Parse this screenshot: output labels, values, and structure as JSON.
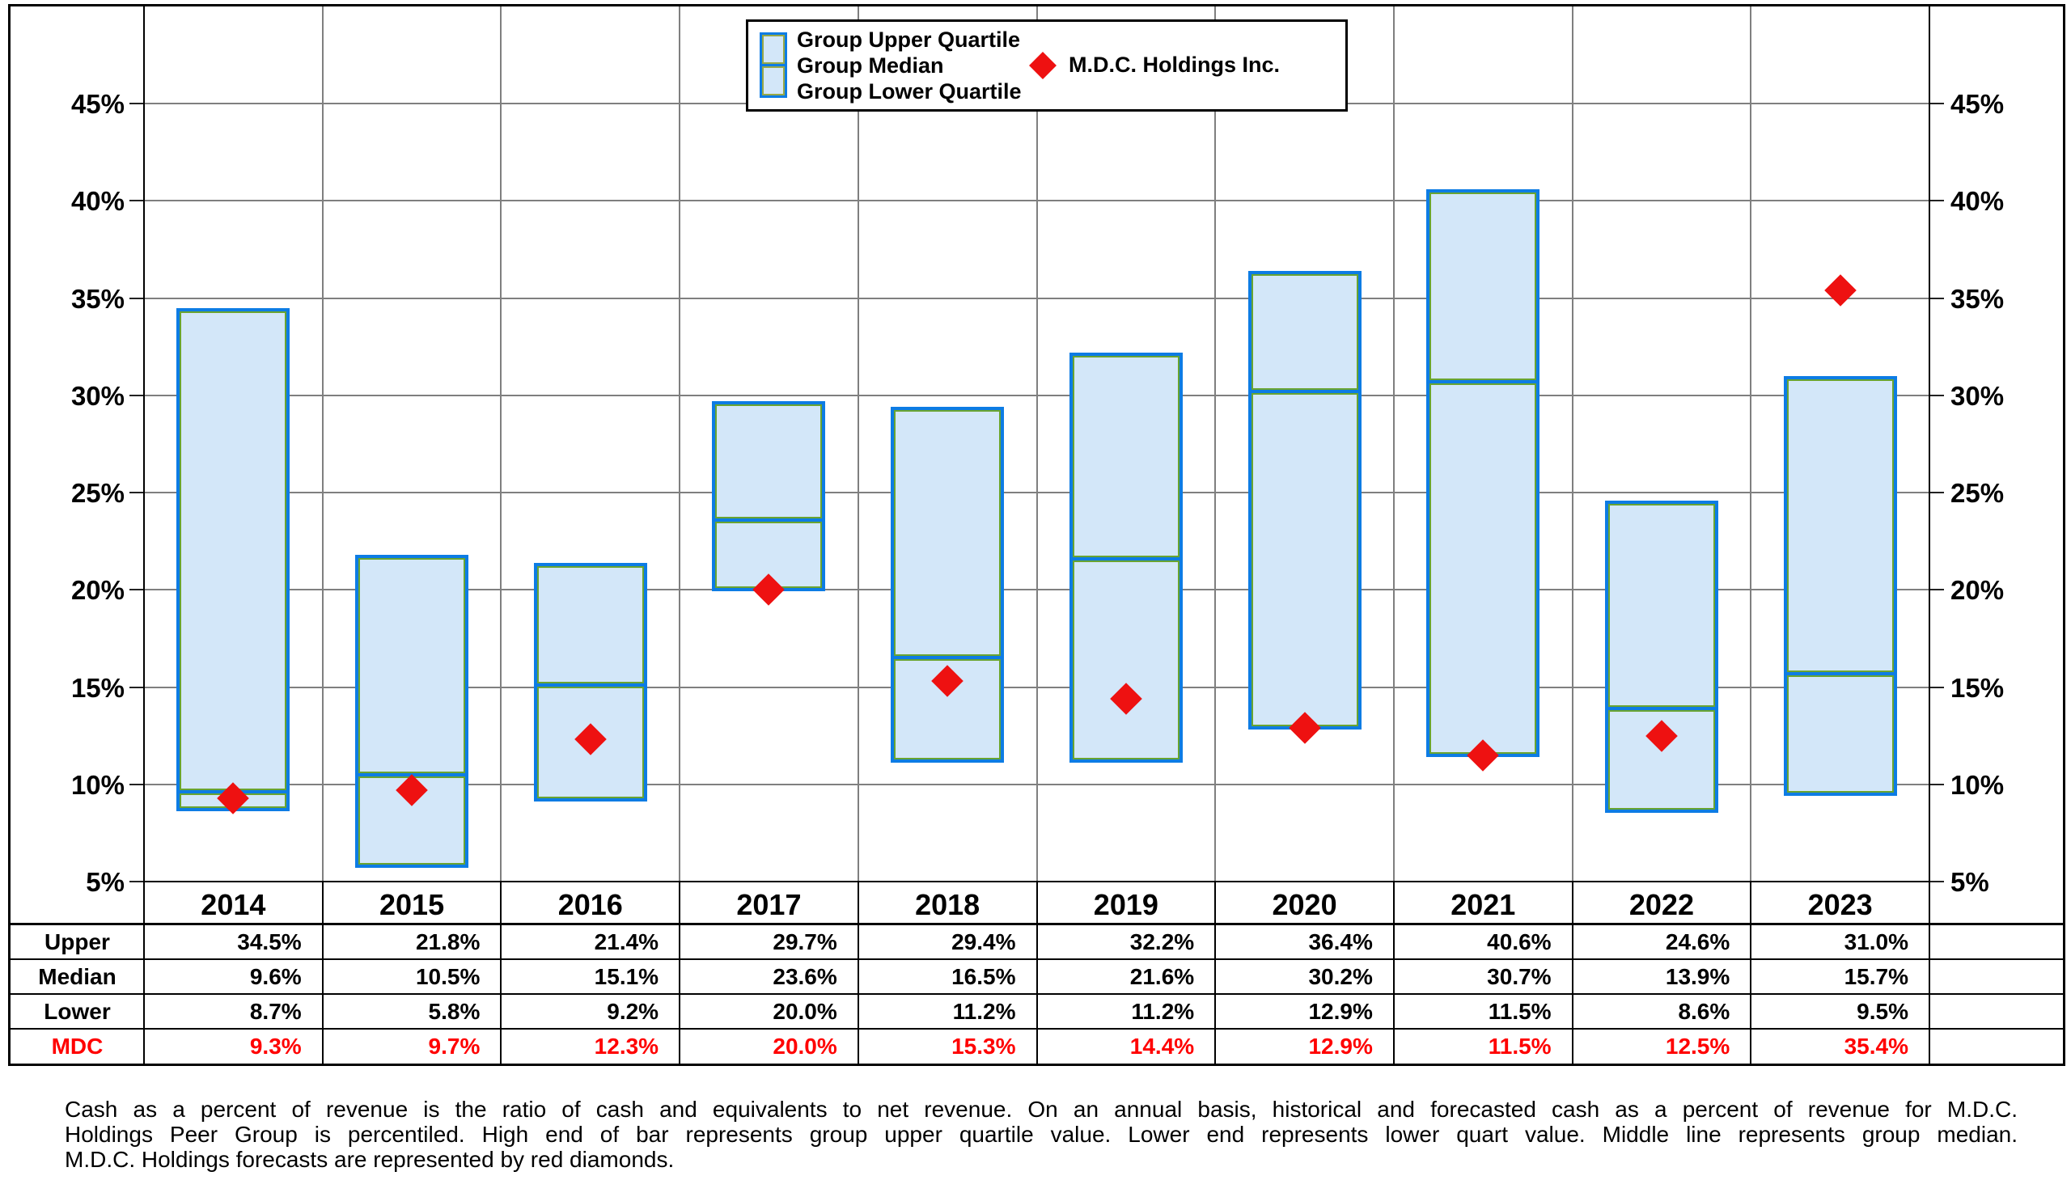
{
  "legend": {
    "group_items": [
      "Group Upper Quartile",
      "Group Median",
      "Group Lower Quartile"
    ],
    "company_item": "M.D.C. Holdings Inc."
  },
  "chart_data": {
    "type": "bar",
    "subtype": "floating-quartile-range-bars-with-scatter-diamonds",
    "categories": [
      "2014",
      "2015",
      "2016",
      "2017",
      "2018",
      "2019",
      "2020",
      "2021",
      "2022",
      "2023"
    ],
    "series": [
      {
        "name": "Group Upper Quartile",
        "values": [
          34.5,
          21.8,
          21.4,
          29.7,
          29.4,
          32.2,
          36.4,
          40.6,
          24.6,
          31.0
        ]
      },
      {
        "name": "Group Median",
        "values": [
          9.6,
          10.5,
          15.1,
          23.6,
          16.5,
          21.6,
          30.2,
          30.7,
          13.9,
          15.7
        ]
      },
      {
        "name": "Group Lower Quartile",
        "values": [
          8.7,
          5.8,
          9.2,
          20.0,
          11.2,
          11.2,
          12.9,
          11.5,
          8.6,
          9.5
        ]
      },
      {
        "name": "M.D.C. Holdings Inc.",
        "type": "scatter",
        "values": [
          9.3,
          9.7,
          12.3,
          20.0,
          15.3,
          14.4,
          12.9,
          11.5,
          12.5,
          35.4
        ]
      }
    ],
    "ylim": [
      5,
      50
    ],
    "ytick_step": 5,
    "ytick_labels": [
      "5%",
      "10%",
      "15%",
      "20%",
      "25%",
      "30%",
      "35%",
      "40%",
      "45%"
    ],
    "grid": true,
    "legend_position": "top-center",
    "colors": {
      "bar_fill": "#d3e7f9",
      "bar_border": "#0d7ce4",
      "bar_inner_line": "#69a430",
      "diamond": "#ee1111",
      "gridline": "#7f7f7f",
      "mdc_text": "#ff0000"
    }
  },
  "table": {
    "rows": [
      {
        "label": "Upper",
        "color": "#000000",
        "values": [
          "34.5%",
          "21.8%",
          "21.4%",
          "29.7%",
          "29.4%",
          "32.2%",
          "36.4%",
          "40.6%",
          "24.6%",
          "31.0%"
        ]
      },
      {
        "label": "Median",
        "color": "#000000",
        "values": [
          "9.6%",
          "10.5%",
          "15.1%",
          "23.6%",
          "16.5%",
          "21.6%",
          "30.2%",
          "30.7%",
          "13.9%",
          "15.7%"
        ]
      },
      {
        "label": "Lower",
        "color": "#000000",
        "values": [
          "8.7%",
          "5.8%",
          "9.2%",
          "20.0%",
          "11.2%",
          "11.2%",
          "12.9%",
          "11.5%",
          "8.6%",
          "9.5%"
        ]
      },
      {
        "label": "MDC",
        "color": "#ff0000",
        "values": [
          "9.3%",
          "9.7%",
          "12.3%",
          "20.0%",
          "15.3%",
          "14.4%",
          "12.9%",
          "11.5%",
          "12.5%",
          "35.4%"
        ]
      }
    ]
  },
  "caption": {
    "lines": [
      "Cash as a percent of revenue is the ratio of cash and equivalents to net revenue. On an annual basis, historical and forecasted cash as a percent of revenue for M.D.C.",
      "Holdings Peer Group is percentiled. High end of bar represents group upper quartile value. Lower end represents lower quart value. Middle line represents group median.",
      "M.D.C. Holdings forecasts are represented by red diamonds."
    ]
  }
}
